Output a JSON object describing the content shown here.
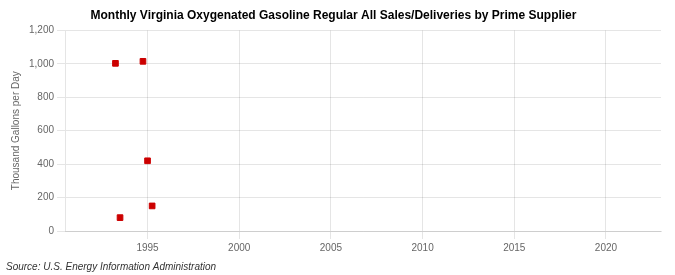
{
  "chart_data": {
    "type": "scatter",
    "title": "Monthly Virginia Oxygenated Gasoline Regular All Sales/Deliveries by Prime Supplier",
    "ylabel": "Thousand Gallons per Day",
    "annotation": "Source: U.S. Energy Information Administration",
    "x": [
      1993.25,
      1993.5,
      1994.75,
      1995.0,
      1995.25
    ],
    "values": [
      1003,
      80,
      1015,
      420,
      150
    ],
    "color": "#cc0000",
    "marker": "square",
    "xlim": [
      1990.5,
      2023
    ],
    "xticks": [
      1995,
      2000,
      2005,
      2010,
      2015,
      2020
    ],
    "ylim": [
      0,
      1200
    ],
    "yticks": [
      0,
      200,
      400,
      600,
      {
        "value": 800,
        "label": "800"
      },
      {
        "value": 1000,
        "label": "1,000"
      },
      {
        "value": 1200,
        "label": "1,200"
      }
    ],
    "grid": true
  }
}
